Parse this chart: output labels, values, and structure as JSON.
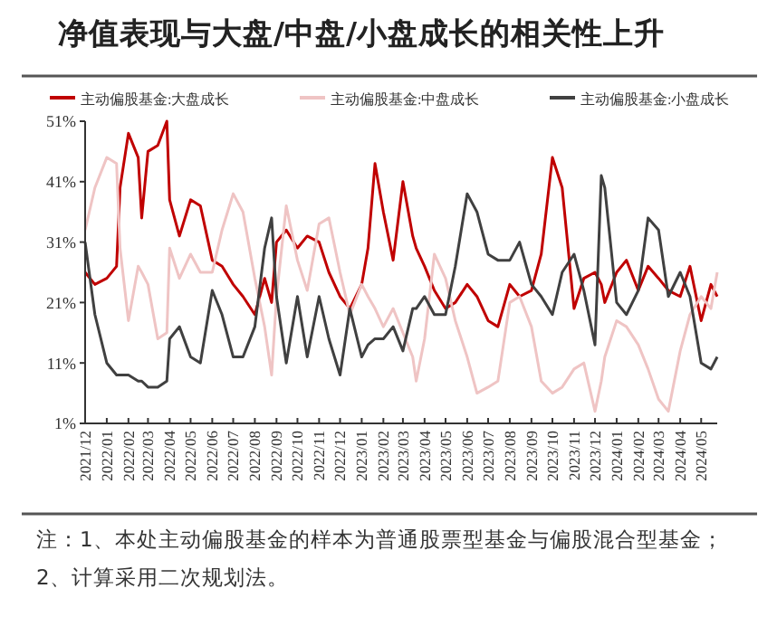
{
  "chart_data": {
    "type": "line",
    "title": "净值表现与大盘/中盘/小盘成长的相关性上升",
    "x": [
      "2021-12-01",
      "2021-12-15",
      "2022-01-01",
      "2022-01-15",
      "2022-01-20",
      "2022-02-01",
      "2022-02-15",
      "2022-02-20",
      "2022-03-01",
      "2022-03-15",
      "2022-03-28",
      "2022-04-01",
      "2022-04-15",
      "2022-05-01",
      "2022-05-15",
      "2022-06-01",
      "2022-06-15",
      "2022-07-01",
      "2022-07-15",
      "2022-08-01",
      "2022-08-15",
      "2022-08-25",
      "2022-09-01",
      "2022-09-15",
      "2022-10-01",
      "2022-10-15",
      "2022-11-01",
      "2022-11-15",
      "2022-12-01",
      "2022-12-15",
      "2023-01-01",
      "2023-01-10",
      "2023-01-20",
      "2023-02-01",
      "2023-02-15",
      "2023-03-01",
      "2023-03-15",
      "2023-03-20",
      "2023-04-01",
      "2023-04-15",
      "2023-05-01",
      "2023-05-15",
      "2023-06-01",
      "2023-06-15",
      "2023-07-01",
      "2023-07-15",
      "2023-08-01",
      "2023-08-15",
      "2023-09-01",
      "2023-09-15",
      "2023-10-01",
      "2023-10-15",
      "2023-11-01",
      "2023-11-15",
      "2023-12-01",
      "2023-12-10",
      "2023-12-15",
      "2024-01-01",
      "2024-01-15",
      "2024-02-01",
      "2024-02-15",
      "2024-03-01",
      "2024-03-15",
      "2024-04-01",
      "2024-04-15",
      "2024-05-01",
      "2024-05-15",
      "2024-05-24"
    ],
    "xlim": [
      "2021-12-01",
      "2024-05-24"
    ],
    "xticks": [
      {
        "value": "2021-12",
        "label": "2021/12"
      },
      {
        "value": "2022-01",
        "label": "2022/01"
      },
      {
        "value": "2022-02",
        "label": "2022/02"
      },
      {
        "value": "2022-03",
        "label": "2022/03"
      },
      {
        "value": "2022-04",
        "label": "2022/04"
      },
      {
        "value": "2022-05",
        "label": "2022/05"
      },
      {
        "value": "2022-06",
        "label": "2022/06"
      },
      {
        "value": "2022-07",
        "label": "2022/07"
      },
      {
        "value": "2022-08",
        "label": "2022/08"
      },
      {
        "value": "2022-09",
        "label": "2022/09"
      },
      {
        "value": "2022-10",
        "label": "2022/10"
      },
      {
        "value": "2022-11",
        "label": "2022/11"
      },
      {
        "value": "2022-12",
        "label": "2022/12"
      },
      {
        "value": "2023-01",
        "label": "2023/01"
      },
      {
        "value": "2023-02",
        "label": "2023/02"
      },
      {
        "value": "2023-03",
        "label": "2023/03"
      },
      {
        "value": "2023-04",
        "label": "2023/04"
      },
      {
        "value": "2023-05",
        "label": "2023/05"
      },
      {
        "value": "2023-06",
        "label": "2023/06"
      },
      {
        "value": "2023-07",
        "label": "2023/07"
      },
      {
        "value": "2023-08",
        "label": "2023/08"
      },
      {
        "value": "2023-09",
        "label": "2023/09"
      },
      {
        "value": "2023-10",
        "label": "2023/10"
      },
      {
        "value": "2023-11",
        "label": "2023/11"
      },
      {
        "value": "2023-12",
        "label": "2023/12"
      },
      {
        "value": "2024-01",
        "label": "2024/01"
      },
      {
        "value": "2024-02",
        "label": "2024/02"
      },
      {
        "value": "2024-03",
        "label": "2024/03"
      },
      {
        "value": "2024-04",
        "label": "2024/04"
      },
      {
        "value": "2024-05",
        "label": "2024/05"
      }
    ],
    "ylim": [
      1,
      51
    ],
    "yticks": [
      {
        "value": 1,
        "label": "1%"
      },
      {
        "value": 11,
        "label": "11%"
      },
      {
        "value": 21,
        "label": "21%"
      },
      {
        "value": 31,
        "label": "31%"
      },
      {
        "value": 41,
        "label": "41%"
      },
      {
        "value": 51,
        "label": "51%"
      }
    ],
    "series": [
      {
        "name": "主动偏股基金:大盘成长",
        "color": "#c00000",
        "values": [
          26,
          24,
          25,
          27,
          40,
          49,
          45,
          35,
          46,
          47,
          51,
          38,
          32,
          38,
          37,
          28,
          27,
          24,
          22,
          19,
          25,
          21,
          31,
          33,
          30,
          32,
          31,
          26,
          22,
          20,
          24,
          30,
          44,
          36,
          28,
          41,
          32,
          30,
          27,
          23,
          20,
          21,
          24,
          22,
          18,
          17,
          24,
          22,
          23,
          29,
          45,
          40,
          20,
          25,
          26,
          24,
          21,
          26,
          28,
          23,
          27,
          25,
          23,
          22,
          27,
          18,
          24,
          22
        ]
      },
      {
        "name": "主动偏股基金:中盘成长",
        "color": "#efc4c4",
        "values": [
          33,
          40,
          45,
          44,
          30,
          18,
          27,
          26,
          24,
          15,
          16,
          30,
          25,
          29,
          26,
          26,
          33,
          39,
          36,
          25,
          17,
          9,
          22,
          37,
          28,
          23,
          34,
          35,
          26,
          19,
          24,
          22,
          20,
          17,
          20,
          16,
          12,
          8,
          15,
          29,
          25,
          18,
          12,
          6,
          7,
          8,
          21,
          22,
          17,
          8,
          6,
          7,
          10,
          11,
          3,
          8,
          12,
          18,
          17,
          14,
          10,
          5,
          3,
          13,
          19,
          22,
          20,
          26
        ]
      },
      {
        "name": "主动偏股基金:小盘成长",
        "color": "#404040",
        "values": [
          31,
          19,
          11,
          9,
          9,
          9,
          8,
          8,
          7,
          7,
          8,
          15,
          17,
          12,
          11,
          23,
          19,
          12,
          12,
          17,
          30,
          35,
          22,
          11,
          22,
          12,
          22,
          15,
          9,
          20,
          12,
          14,
          15,
          15,
          17,
          13,
          20,
          20,
          22,
          19,
          19,
          27,
          39,
          36,
          29,
          28,
          28,
          31,
          24,
          22,
          19,
          26,
          29,
          23,
          14,
          42,
          40,
          21,
          19,
          23,
          35,
          33,
          22,
          26,
          22,
          11,
          10,
          12
        ]
      }
    ],
    "legend": "top",
    "annotations": [
      "注：1、本处主动偏股基金的样本为普通股票型基金与偏股混合型基金；2、计算采用二次规划法。"
    ]
  }
}
